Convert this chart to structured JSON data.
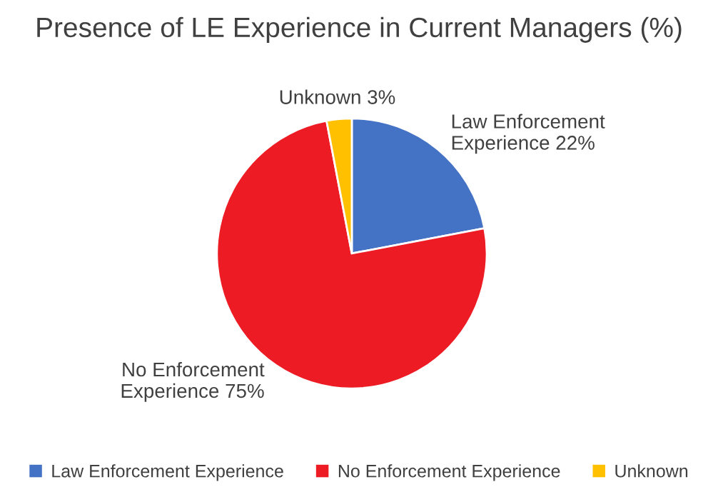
{
  "chart_data": {
    "type": "pie",
    "title": "Presence of LE Experience in Current Managers (%)",
    "categories": [
      "Law Enforcement Experience",
      "No Enforcement Experience",
      "Unknown"
    ],
    "values": [
      22,
      75,
      3
    ],
    "colors": [
      "#4472c4",
      "#ed1c24",
      "#ffc000"
    ],
    "value_labels": [
      "22%",
      "75%",
      "3%"
    ],
    "legend": "bottom"
  }
}
